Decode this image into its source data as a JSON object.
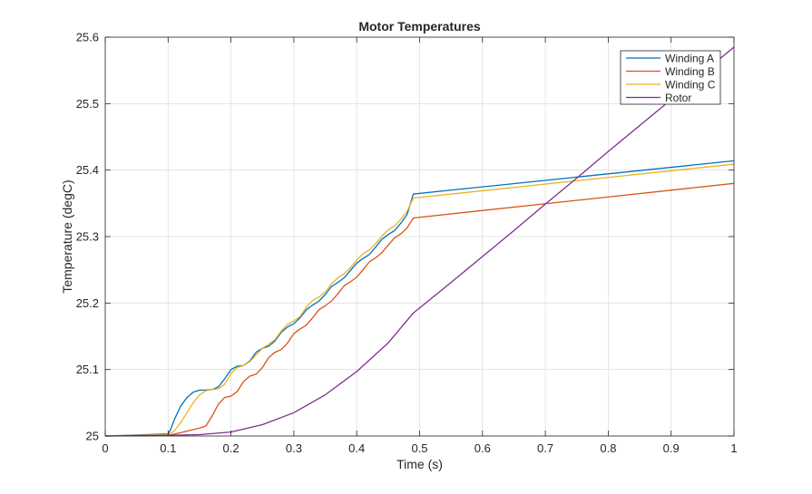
{
  "chart_data": {
    "type": "line",
    "title": "Motor Temperatures",
    "xlabel": "Time (s)",
    "ylabel": "Temperature (degC)",
    "xlim": [
      0,
      1
    ],
    "ylim": [
      25,
      25.6
    ],
    "xticks": [
      0,
      0.1,
      0.2,
      0.3,
      0.4,
      0.5,
      0.6,
      0.7,
      0.8,
      0.9,
      1
    ],
    "xtick_labels": [
      "0",
      "0.1",
      "0.2",
      "0.3",
      "0.4",
      "0.5",
      "0.6",
      "0.7",
      "0.8",
      "0.9",
      "1"
    ],
    "yticks": [
      25,
      25.1,
      25.2,
      25.3,
      25.4,
      25.5,
      25.6
    ],
    "ytick_labels": [
      "25",
      "25.1",
      "25.2",
      "25.3",
      "25.4",
      "25.5",
      "25.6"
    ],
    "grid": true,
    "legend_position": "top-right",
    "series": [
      {
        "name": "Winding A",
        "color": "#0072BD",
        "x": [
          0,
          0.1,
          0.105,
          0.11,
          0.12,
          0.13,
          0.14,
          0.15,
          0.16,
          0.17,
          0.18,
          0.19,
          0.2,
          0.21,
          0.22,
          0.23,
          0.24,
          0.25,
          0.26,
          0.27,
          0.28,
          0.29,
          0.3,
          0.31,
          0.32,
          0.33,
          0.34,
          0.35,
          0.36,
          0.37,
          0.38,
          0.39,
          0.4,
          0.41,
          0.42,
          0.43,
          0.44,
          0.45,
          0.46,
          0.47,
          0.48,
          0.49,
          1.0
        ],
        "y": [
          25.0,
          25.003,
          25.012,
          25.025,
          25.045,
          25.058,
          25.066,
          25.069,
          25.069,
          25.07,
          25.074,
          25.086,
          25.1,
          25.105,
          25.106,
          25.113,
          25.126,
          25.132,
          25.135,
          25.143,
          25.156,
          25.164,
          25.169,
          25.178,
          25.19,
          25.197,
          25.203,
          25.213,
          25.225,
          25.231,
          25.238,
          25.249,
          25.26,
          25.267,
          25.273,
          25.284,
          25.296,
          25.303,
          25.309,
          25.32,
          25.333,
          25.364,
          25.414
        ]
      },
      {
        "name": "Winding B",
        "color": "#D95319",
        "x": [
          0,
          0.1,
          0.12,
          0.15,
          0.16,
          0.17,
          0.18,
          0.19,
          0.2,
          0.21,
          0.22,
          0.23,
          0.24,
          0.25,
          0.26,
          0.27,
          0.28,
          0.29,
          0.3,
          0.31,
          0.32,
          0.33,
          0.34,
          0.35,
          0.36,
          0.37,
          0.38,
          0.39,
          0.4,
          0.41,
          0.42,
          0.43,
          0.44,
          0.45,
          0.46,
          0.47,
          0.48,
          0.49,
          1.0
        ],
        "y": [
          25.0,
          25.001,
          25.005,
          25.012,
          25.015,
          25.03,
          25.048,
          25.058,
          25.06,
          25.067,
          25.082,
          25.09,
          25.093,
          25.103,
          25.118,
          25.126,
          25.13,
          25.14,
          25.154,
          25.161,
          25.167,
          25.178,
          25.19,
          25.196,
          25.203,
          25.214,
          25.226,
          25.232,
          25.239,
          25.25,
          25.262,
          25.268,
          25.276,
          25.287,
          25.298,
          25.304,
          25.313,
          25.328,
          25.38
        ]
      },
      {
        "name": "Winding C",
        "color": "#EDB120",
        "x": [
          0,
          0.1,
          0.11,
          0.12,
          0.13,
          0.14,
          0.15,
          0.16,
          0.17,
          0.18,
          0.19,
          0.2,
          0.21,
          0.22,
          0.23,
          0.24,
          0.25,
          0.26,
          0.27,
          0.28,
          0.29,
          0.3,
          0.31,
          0.32,
          0.33,
          0.34,
          0.35,
          0.36,
          0.37,
          0.38,
          0.39,
          0.4,
          0.41,
          0.42,
          0.43,
          0.44,
          0.45,
          0.46,
          0.47,
          0.48,
          0.49,
          1.0
        ],
        "y": [
          25.0,
          25.002,
          25.008,
          25.02,
          25.035,
          25.05,
          25.062,
          25.068,
          25.07,
          25.071,
          25.078,
          25.094,
          25.103,
          25.106,
          25.112,
          25.122,
          25.132,
          25.138,
          25.145,
          25.158,
          25.168,
          25.173,
          25.18,
          25.194,
          25.204,
          25.209,
          25.217,
          25.229,
          25.238,
          25.244,
          25.253,
          25.265,
          25.274,
          25.28,
          25.289,
          25.301,
          25.31,
          25.316,
          25.326,
          25.338,
          25.358,
          25.409
        ]
      },
      {
        "name": "Rotor",
        "color": "#7E2F8E",
        "x": [
          0,
          0.1,
          0.15,
          0.2,
          0.25,
          0.3,
          0.35,
          0.4,
          0.45,
          0.49,
          0.55,
          0.6,
          0.65,
          0.7,
          0.75,
          0.8,
          0.85,
          0.9,
          0.95,
          1.0
        ],
        "y": [
          25.0,
          25.001,
          25.002,
          25.006,
          25.017,
          25.035,
          25.062,
          25.097,
          25.14,
          25.185,
          25.231,
          25.27,
          25.309,
          25.349,
          25.388,
          25.428,
          25.467,
          25.506,
          25.546,
          25.585
        ]
      }
    ]
  }
}
